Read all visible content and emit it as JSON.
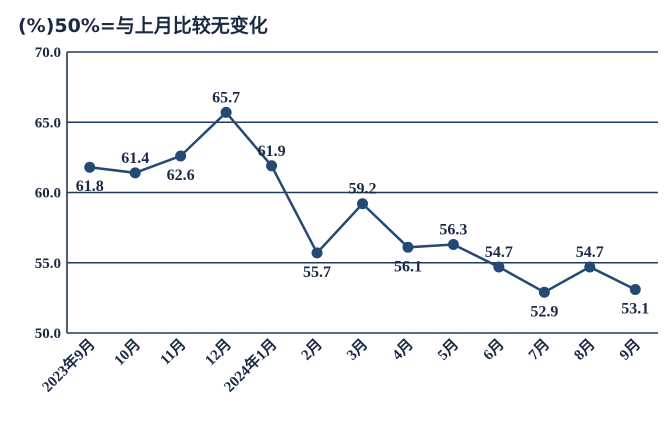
{
  "chart_data": {
    "type": "line",
    "title": "(%)50%=与上月比较无变化",
    "categories": [
      "2023年9月",
      "10月",
      "11月",
      "12月",
      "2024年1月",
      "2月",
      "3月",
      "4月",
      "5月",
      "6月",
      "7月",
      "8月",
      "9月"
    ],
    "values": [
      61.8,
      61.4,
      62.6,
      65.7,
      61.9,
      55.7,
      59.2,
      56.1,
      56.3,
      54.7,
      52.9,
      54.7,
      53.1
    ],
    "color": "#244a74",
    "ylim": [
      50,
      70
    ],
    "yticks": [
      {
        "value": 50,
        "label": "50.0"
      },
      {
        "value": 55,
        "label": "55.0"
      },
      {
        "value": 60,
        "label": "60.0"
      },
      {
        "value": 65,
        "label": "65.0"
      },
      {
        "value": 70,
        "label": "70.0"
      }
    ],
    "grid": true
  }
}
